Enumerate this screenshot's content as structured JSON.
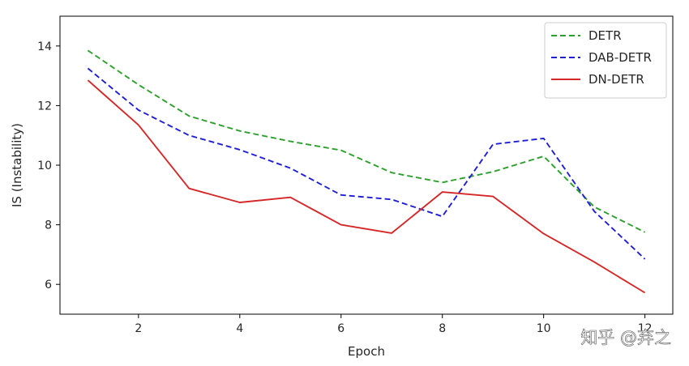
{
  "chart_data": {
    "type": "line",
    "xlabel": "Epoch",
    "ylabel": "IS (Instability)",
    "xlim": [
      0.45,
      12.55
    ],
    "ylim": [
      5.0,
      15.0
    ],
    "x_ticks": [
      2,
      4,
      6,
      8,
      10,
      12
    ],
    "y_ticks": [
      6,
      8,
      10,
      12,
      14
    ],
    "x": [
      1,
      2,
      3,
      4,
      5,
      6,
      7,
      8,
      9,
      10,
      11,
      12
    ],
    "grid": false,
    "legend_position": "top-right",
    "series": [
      {
        "name": "DETR",
        "color": "#2ca02c",
        "style": "dashed",
        "values": [
          13.85,
          12.7,
          11.65,
          11.15,
          10.8,
          10.5,
          9.75,
          9.42,
          9.78,
          10.3,
          8.6,
          7.75
        ]
      },
      {
        "name": "DAB-DETR",
        "color": "#1f1fd6",
        "style": "dashed",
        "values": [
          13.25,
          11.85,
          11.0,
          10.52,
          9.9,
          9.0,
          8.85,
          8.28,
          10.7,
          10.9,
          8.45,
          6.85
        ]
      },
      {
        "name": "DN-DETR",
        "color": "#d62728",
        "style": "solid",
        "values": [
          12.85,
          11.35,
          9.22,
          8.75,
          8.92,
          8.0,
          7.72,
          9.1,
          8.95,
          7.7,
          6.75,
          5.72
        ]
      }
    ]
  },
  "watermark": "知乎 @弃之"
}
